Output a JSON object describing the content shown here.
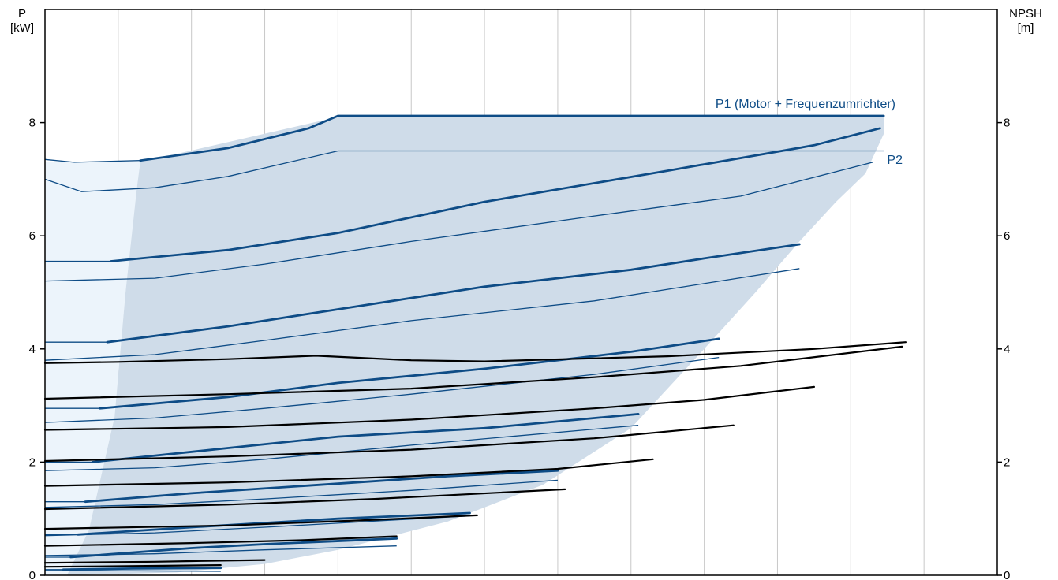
{
  "colors": {
    "background": "#ffffff",
    "grid": "#c8c8c8",
    "area_light": "#ecf4fb",
    "area": "#cfdce9",
    "power": "#0e4c86",
    "npsh": "#000000",
    "frame": "#000000"
  },
  "chart_data": {
    "type": "line",
    "x": {
      "min": 0,
      "max": 13,
      "grid_lines": 13,
      "tick_labels": false
    },
    "left_axis": {
      "title_line1": "P",
      "title_line2": "[kW]",
      "range": [
        0,
        10
      ],
      "ticks": [
        "0",
        "2",
        "4",
        "6",
        "8"
      ],
      "tick_values": [
        0,
        2,
        4,
        6,
        8
      ]
    },
    "right_axis": {
      "title_line1": "NPSH",
      "title_line2": "[m]",
      "range": [
        0,
        10
      ],
      "ticks": [
        "0",
        "2",
        "4",
        "6",
        "8"
      ],
      "tick_values": [
        0,
        2,
        4,
        6,
        8
      ]
    },
    "grid": true,
    "labels": {
      "p1": "P1 (Motor + Frequenzumrichter)",
      "p2": "P2"
    },
    "operating_area": {
      "boundary": [
        [
          0.3,
          0
        ],
        [
          0.6,
          0.8
        ],
        [
          0.95,
          2.8
        ],
        [
          1.1,
          5
        ],
        [
          1.25,
          6.8
        ],
        [
          1.3,
          7.3
        ],
        [
          4.0,
          8.1
        ],
        [
          11.45,
          8.1
        ],
        [
          11.45,
          7.8
        ],
        [
          11.2,
          7.1
        ],
        [
          10.8,
          6.6
        ],
        [
          10.3,
          5.9
        ],
        [
          9.7,
          5.0
        ],
        [
          9.0,
          4.0
        ],
        [
          8.0,
          2.6
        ],
        [
          6.8,
          1.6
        ],
        [
          5.5,
          0.95
        ],
        [
          4.0,
          0.45
        ],
        [
          3.0,
          0.2
        ],
        [
          1.8,
          0.05
        ]
      ],
      "light_left": [
        [
          0,
          0
        ],
        [
          0.3,
          0
        ],
        [
          0.6,
          0.8
        ],
        [
          0.95,
          2.8
        ],
        [
          1.1,
          5
        ],
        [
          1.25,
          6.8
        ],
        [
          1.3,
          7.3
        ],
        [
          0,
          7.3
        ]
      ]
    },
    "p1_curves": [
      [
        [
          1.3,
          7.33
        ],
        [
          2.5,
          7.55
        ],
        [
          3.6,
          7.9
        ],
        [
          4.0,
          8.12
        ],
        [
          11.45,
          8.12
        ]
      ],
      [
        [
          0.9,
          5.55
        ],
        [
          2.5,
          5.75
        ],
        [
          4.0,
          6.05
        ],
        [
          6.0,
          6.6
        ],
        [
          8.5,
          7.15
        ],
        [
          10.5,
          7.6
        ],
        [
          11.4,
          7.9
        ]
      ],
      [
        [
          0.85,
          4.12
        ],
        [
          2.5,
          4.4
        ],
        [
          4.0,
          4.7
        ],
        [
          6.0,
          5.1
        ],
        [
          8.0,
          5.4
        ],
        [
          9.0,
          5.6
        ],
        [
          10.3,
          5.85
        ]
      ],
      [
        [
          0.75,
          2.95
        ],
        [
          2.5,
          3.15
        ],
        [
          4.0,
          3.4
        ],
        [
          6.0,
          3.65
        ],
        [
          8.0,
          3.95
        ],
        [
          9.2,
          4.18
        ]
      ],
      [
        [
          0.65,
          2.0
        ],
        [
          2.5,
          2.25
        ],
        [
          4.0,
          2.45
        ],
        [
          6.0,
          2.6
        ],
        [
          8.1,
          2.85
        ]
      ],
      [
        [
          0.55,
          1.3
        ],
        [
          2.0,
          1.45
        ],
        [
          4.0,
          1.62
        ],
        [
          5.5,
          1.75
        ],
        [
          7.0,
          1.85
        ]
      ],
      [
        [
          0.45,
          0.72
        ],
        [
          2.0,
          0.85
        ],
        [
          4.0,
          1.0
        ],
        [
          5.8,
          1.1
        ]
      ],
      [
        [
          0.35,
          0.32
        ],
        [
          2.0,
          0.48
        ],
        [
          3.0,
          0.55
        ],
        [
          4.8,
          0.65
        ]
      ],
      [
        [
          0.25,
          0.1
        ],
        [
          1.2,
          0.12
        ],
        [
          2.4,
          0.13
        ]
      ]
    ],
    "p1_left_segments": [
      [
        [
          0,
          7.35
        ],
        [
          0.4,
          7.3
        ],
        [
          1.3,
          7.33
        ]
      ],
      [
        [
          0,
          5.55
        ],
        [
          0.9,
          5.55
        ]
      ],
      [
        [
          0,
          4.12
        ],
        [
          0.85,
          4.12
        ]
      ],
      [
        [
          0,
          2.95
        ],
        [
          0.75,
          2.95
        ]
      ],
      [
        [
          0,
          2.0
        ],
        [
          0.65,
          2.0
        ]
      ],
      [
        [
          0,
          1.3
        ],
        [
          0.55,
          1.3
        ]
      ],
      [
        [
          0,
          0.72
        ],
        [
          0.45,
          0.72
        ]
      ],
      [
        [
          0,
          0.32
        ],
        [
          0.35,
          0.32
        ]
      ],
      [
        [
          0,
          0.1
        ],
        [
          0.25,
          0.1
        ]
      ]
    ],
    "p2_curves": [
      [
        [
          0,
          7.0
        ],
        [
          0.5,
          6.78
        ],
        [
          1.5,
          6.85
        ],
        [
          2.5,
          7.05
        ],
        [
          4.0,
          7.5
        ],
        [
          11.45,
          7.5
        ]
      ],
      [
        [
          0,
          5.2
        ],
        [
          1.5,
          5.25
        ],
        [
          3.0,
          5.5
        ],
        [
          5.0,
          5.9
        ],
        [
          7.5,
          6.35
        ],
        [
          9.5,
          6.7
        ],
        [
          11.3,
          7.3
        ]
      ],
      [
        [
          0,
          3.8
        ],
        [
          1.5,
          3.9
        ],
        [
          3.0,
          4.15
        ],
        [
          5.0,
          4.5
        ],
        [
          7.5,
          4.85
        ],
        [
          10.3,
          5.42
        ]
      ],
      [
        [
          0,
          2.7
        ],
        [
          1.5,
          2.78
        ],
        [
          3.0,
          2.95
        ],
        [
          5.0,
          3.2
        ],
        [
          7.5,
          3.55
        ],
        [
          9.2,
          3.85
        ]
      ],
      [
        [
          0,
          1.85
        ],
        [
          1.5,
          1.9
        ],
        [
          3.0,
          2.05
        ],
        [
          5.0,
          2.3
        ],
        [
          8.1,
          2.65
        ]
      ],
      [
        [
          0,
          1.2
        ],
        [
          1.5,
          1.25
        ],
        [
          3.0,
          1.35
        ],
        [
          5.0,
          1.5
        ],
        [
          7.0,
          1.68
        ]
      ],
      [
        [
          0,
          0.7
        ],
        [
          1.5,
          0.75
        ],
        [
          3.0,
          0.85
        ],
        [
          5.8,
          1.05
        ]
      ],
      [
        [
          0,
          0.35
        ],
        [
          1.5,
          0.38
        ],
        [
          3.0,
          0.45
        ],
        [
          4.8,
          0.52
        ]
      ],
      [
        [
          0,
          0.08
        ],
        [
          1.2,
          0.08
        ],
        [
          2.4,
          0.07
        ]
      ]
    ],
    "npsh_curves": [
      [
        [
          0,
          3.75
        ],
        [
          1.0,
          3.77
        ],
        [
          2.5,
          3.82
        ],
        [
          3.7,
          3.88
        ],
        [
          5.0,
          3.8
        ],
        [
          6.0,
          3.78
        ],
        [
          8.5,
          3.87
        ],
        [
          10.5,
          4.0
        ],
        [
          11.75,
          4.12
        ]
      ],
      [
        [
          0,
          3.12
        ],
        [
          2.5,
          3.2
        ],
        [
          5.0,
          3.3
        ],
        [
          7.5,
          3.5
        ],
        [
          9.5,
          3.7
        ],
        [
          11.7,
          4.04
        ]
      ],
      [
        [
          0,
          2.57
        ],
        [
          2.5,
          2.62
        ],
        [
          5.0,
          2.75
        ],
        [
          7.5,
          2.95
        ],
        [
          9.0,
          3.1
        ],
        [
          10.5,
          3.33
        ]
      ],
      [
        [
          0,
          2.02
        ],
        [
          2.5,
          2.1
        ],
        [
          5.0,
          2.22
        ],
        [
          7.5,
          2.42
        ],
        [
          9.4,
          2.65
        ]
      ],
      [
        [
          0,
          1.58
        ],
        [
          2.5,
          1.64
        ],
        [
          5.0,
          1.75
        ],
        [
          7.0,
          1.88
        ],
        [
          8.3,
          2.05
        ]
      ],
      [
        [
          0,
          1.17
        ],
        [
          2.5,
          1.25
        ],
        [
          4.5,
          1.35
        ],
        [
          7.1,
          1.52
        ]
      ],
      [
        [
          0,
          0.82
        ],
        [
          2.5,
          0.88
        ],
        [
          4.5,
          0.98
        ],
        [
          5.9,
          1.06
        ]
      ],
      [
        [
          0,
          0.52
        ],
        [
          2.0,
          0.57
        ],
        [
          3.5,
          0.62
        ],
        [
          4.8,
          0.69
        ]
      ],
      [
        [
          0,
          0.22
        ],
        [
          1.5,
          0.24
        ],
        [
          2.0,
          0.25
        ],
        [
          3.0,
          0.27
        ]
      ],
      [
        [
          0,
          0.15
        ],
        [
          1.0,
          0.16
        ],
        [
          2.4,
          0.18
        ]
      ]
    ]
  }
}
